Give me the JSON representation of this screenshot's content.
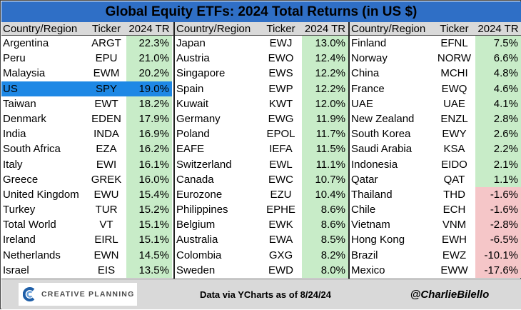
{
  "title": "Global Equity ETFs: 2024 Total Returns (in US $)",
  "headers": {
    "country": "Country/Region",
    "ticker": "Ticker",
    "tr": "2024 TR"
  },
  "chart_data": {
    "type": "table",
    "columns": [
      "Country/Region",
      "Ticker",
      "2024 TR"
    ],
    "blocks": [
      {
        "rows": [
          {
            "country": "Argentina",
            "ticker": "ARGT",
            "tr": "22.3%",
            "value": 22.3
          },
          {
            "country": "Peru",
            "ticker": "EPU",
            "tr": "21.0%",
            "value": 21.0
          },
          {
            "country": "Malaysia",
            "ticker": "EWM",
            "tr": "20.2%",
            "value": 20.2
          },
          {
            "country": "US",
            "ticker": "SPY",
            "tr": "19.0%",
            "value": 19.0,
            "highlight": true
          },
          {
            "country": "Taiwan",
            "ticker": "EWT",
            "tr": "18.2%",
            "value": 18.2
          },
          {
            "country": "Denmark",
            "ticker": "EDEN",
            "tr": "17.9%",
            "value": 17.9
          },
          {
            "country": "India",
            "ticker": "INDA",
            "tr": "16.9%",
            "value": 16.9
          },
          {
            "country": "South Africa",
            "ticker": "EZA",
            "tr": "16.2%",
            "value": 16.2
          },
          {
            "country": "Italy",
            "ticker": "EWI",
            "tr": "16.1%",
            "value": 16.1
          },
          {
            "country": "Greece",
            "ticker": "GREK",
            "tr": "16.0%",
            "value": 16.0
          },
          {
            "country": "United Kingdom",
            "ticker": "EWU",
            "tr": "15.4%",
            "value": 15.4
          },
          {
            "country": "Turkey",
            "ticker": "TUR",
            "tr": "15.2%",
            "value": 15.2
          },
          {
            "country": "Total World",
            "ticker": "VT",
            "tr": "15.1%",
            "value": 15.1
          },
          {
            "country": "Ireland",
            "ticker": "EIRL",
            "tr": "15.1%",
            "value": 15.1
          },
          {
            "country": "Netherlands",
            "ticker": "EWN",
            "tr": "14.5%",
            "value": 14.5
          },
          {
            "country": "Israel",
            "ticker": "EIS",
            "tr": "13.5%",
            "value": 13.5
          }
        ]
      },
      {
        "rows": [
          {
            "country": "Japan",
            "ticker": "EWJ",
            "tr": "13.0%",
            "value": 13.0
          },
          {
            "country": "Austria",
            "ticker": "EWO",
            "tr": "12.4%",
            "value": 12.4
          },
          {
            "country": "Singapore",
            "ticker": "EWS",
            "tr": "12.2%",
            "value": 12.2
          },
          {
            "country": "Spain",
            "ticker": "EWP",
            "tr": "12.2%",
            "value": 12.2
          },
          {
            "country": "Kuwait",
            "ticker": "KWT",
            "tr": "12.0%",
            "value": 12.0
          },
          {
            "country": "Germany",
            "ticker": "EWG",
            "tr": "11.9%",
            "value": 11.9
          },
          {
            "country": "Poland",
            "ticker": "EPOL",
            "tr": "11.7%",
            "value": 11.7
          },
          {
            "country": "EAFE",
            "ticker": "IEFA",
            "tr": "11.5%",
            "value": 11.5
          },
          {
            "country": "Switzerland",
            "ticker": "EWL",
            "tr": "11.1%",
            "value": 11.1
          },
          {
            "country": "Canada",
            "ticker": "EWC",
            "tr": "10.7%",
            "value": 10.7
          },
          {
            "country": "Eurozone",
            "ticker": "EZU",
            "tr": "10.4%",
            "value": 10.4
          },
          {
            "country": "Philippines",
            "ticker": "EPHE",
            "tr": "8.6%",
            "value": 8.6
          },
          {
            "country": "Belgium",
            "ticker": "EWK",
            "tr": "8.6%",
            "value": 8.6
          },
          {
            "country": "Australia",
            "ticker": "EWA",
            "tr": "8.5%",
            "value": 8.5
          },
          {
            "country": "Colombia",
            "ticker": "GXG",
            "tr": "8.2%",
            "value": 8.2
          },
          {
            "country": "Sweden",
            "ticker": "EWD",
            "tr": "8.0%",
            "value": 8.0
          }
        ]
      },
      {
        "rows": [
          {
            "country": "Finland",
            "ticker": "EFNL",
            "tr": "7.5%",
            "value": 7.5
          },
          {
            "country": "Norway",
            "ticker": "NORW",
            "tr": "6.6%",
            "value": 6.6
          },
          {
            "country": "China",
            "ticker": "MCHI",
            "tr": "4.8%",
            "value": 4.8
          },
          {
            "country": "France",
            "ticker": "EWQ",
            "tr": "4.6%",
            "value": 4.6
          },
          {
            "country": "UAE",
            "ticker": "UAE",
            "tr": "4.1%",
            "value": 4.1
          },
          {
            "country": "New Zealand",
            "ticker": "ENZL",
            "tr": "2.8%",
            "value": 2.8
          },
          {
            "country": "South Korea",
            "ticker": "EWY",
            "tr": "2.6%",
            "value": 2.6
          },
          {
            "country": "Saudi Arabia",
            "ticker": "KSA",
            "tr": "2.2%",
            "value": 2.2
          },
          {
            "country": "Indonesia",
            "ticker": "EIDO",
            "tr": "2.1%",
            "value": 2.1
          },
          {
            "country": "Qatar",
            "ticker": "QAT",
            "tr": "1.1%",
            "value": 1.1
          },
          {
            "country": "Thailand",
            "ticker": "THD",
            "tr": "-1.6%",
            "value": -1.6
          },
          {
            "country": "Chile",
            "ticker": "ECH",
            "tr": "-1.6%",
            "value": -1.6
          },
          {
            "country": "Vietnam",
            "ticker": "VNM",
            "tr": "-2.8%",
            "value": -2.8
          },
          {
            "country": "Hong Kong",
            "ticker": "EWH",
            "tr": "-6.5%",
            "value": -6.5
          },
          {
            "country": "Brazil",
            "ticker": "EWZ",
            "tr": "-10.1%",
            "value": -10.1
          },
          {
            "country": "Mexico",
            "ticker": "EWW",
            "tr": "-17.6%",
            "value": -17.6
          }
        ]
      }
    ]
  },
  "colors": {
    "title_bg": "#2f6fc6",
    "positive": "#c8ecc8",
    "negative": "#f5c6c8",
    "highlight": "#1e88e5",
    "header_bg": "#d9d9d9"
  },
  "footer": {
    "logo_text": "CREATIVE PLANNING",
    "logo_icon": "creative-planning-logo-icon",
    "source": "Data via YCharts as of 8/24/24",
    "handle": "@CharlieBilello"
  }
}
